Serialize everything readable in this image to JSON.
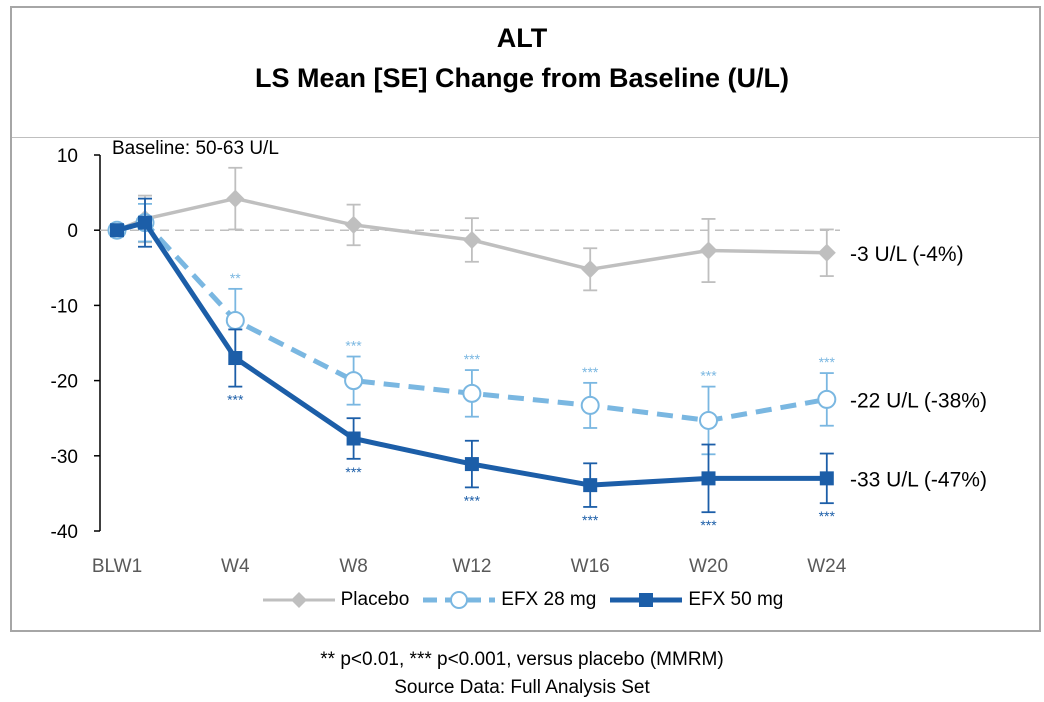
{
  "title": "ALT",
  "subtitle": "LS Mean [SE] Change from Baseline (U/L)",
  "footnote": "** p<0.01, *** p<0.001, versus placebo (MMRM)",
  "source": "Source Data: Full Analysis Set",
  "colors": {
    "placebo": "#bfbfbf",
    "efx28": "#7ab7e1",
    "efx50": "#1c5ea8",
    "zero_line": "#bfbfbf"
  },
  "chart_data": {
    "type": "line",
    "categories": [
      "BLW1",
      "W4",
      "W8",
      "W12",
      "W16",
      "W20",
      "W24"
    ],
    "ylim": [
      -40,
      10
    ],
    "yticks": [
      10,
      0,
      -10,
      -20,
      -30,
      -40
    ],
    "annotation_baseline": "Baseline: 50-63 U/L",
    "series": [
      {
        "name": "Placebo",
        "first_point": 0,
        "values": [
          1.5,
          4.2,
          0.7,
          -1.3,
          -5.2,
          -2.7,
          -3.0
        ],
        "se_upper": [
          4.6,
          8.3,
          3.4,
          1.6,
          -2.4,
          1.5,
          0.1
        ],
        "se_lower": [
          -1.6,
          0.1,
          -2.0,
          -4.2,
          -8.0,
          -6.9,
          -6.1
        ],
        "significance": [
          "",
          "",
          "",
          "",
          "",
          "",
          ""
        ],
        "end_label": "-3 U/L (-4%)"
      },
      {
        "name": "EFX 28 mg",
        "first_point": 0,
        "values": [
          1.0,
          -12.0,
          -20.0,
          -21.7,
          -23.3,
          -25.3,
          -22.5
        ],
        "se_upper": [
          3.5,
          -7.8,
          -16.8,
          -18.6,
          -20.3,
          -20.8,
          -19.0
        ],
        "se_lower": [
          -1.5,
          -16.2,
          -23.2,
          -24.8,
          -26.3,
          -29.8,
          -26.0
        ],
        "significance": [
          "",
          "**",
          "***",
          "***",
          "***",
          "***",
          "***"
        ],
        "end_label": "-22 U/L (-38%)"
      },
      {
        "name": "EFX 50 mg",
        "first_point": 0,
        "values": [
          1.0,
          -17.0,
          -27.7,
          -31.1,
          -33.9,
          -33.0,
          -33.0
        ],
        "se_upper": [
          4.2,
          -13.2,
          -25.0,
          -28.0,
          -31.0,
          -28.5,
          -29.7
        ],
        "se_lower": [
          -2.2,
          -20.8,
          -30.4,
          -34.2,
          -36.8,
          -37.5,
          -36.3
        ],
        "significance": [
          "",
          "***",
          "***",
          "***",
          "***",
          "***",
          "***"
        ],
        "end_label": "-33 U/L (-47%)"
      }
    ]
  }
}
